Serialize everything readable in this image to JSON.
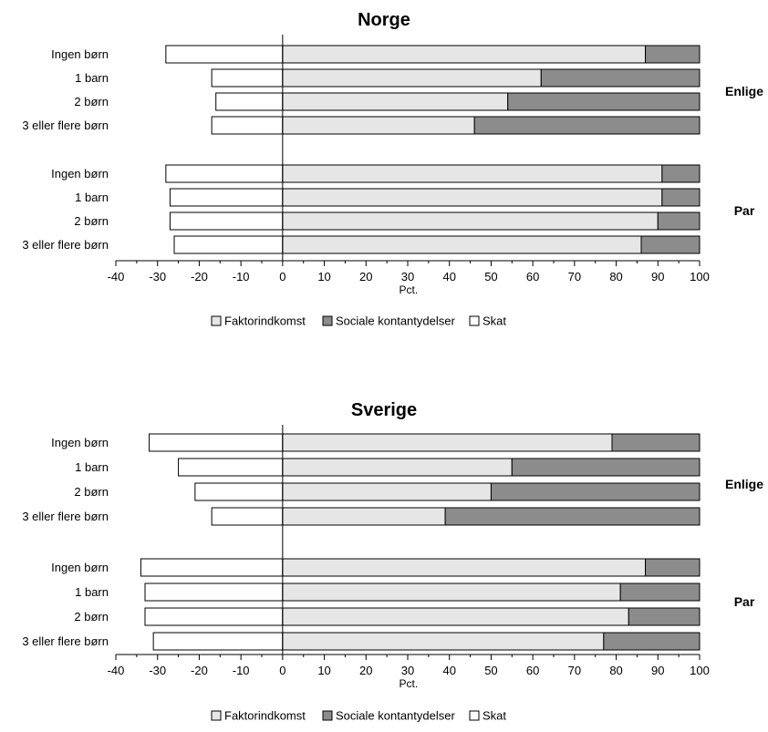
{
  "colors": {
    "faktor": "#e6e6e6",
    "sociale": "#8c8c8c",
    "skat": "#ffffff",
    "stroke": "#000000"
  },
  "chart_data": [
    {
      "type": "bar",
      "orientation": "horizontal",
      "stacked": true,
      "title": "Norge",
      "xlabel": "Pct.",
      "xlim": [
        -40,
        100
      ],
      "xticks": [
        -40,
        -30,
        -20,
        -10,
        0,
        10,
        20,
        30,
        40,
        50,
        60,
        70,
        80,
        90,
        100
      ],
      "legend_position": "bottom",
      "series_names": [
        "Faktorindkomst",
        "Sociale kontantydelser",
        "Skat"
      ],
      "groups": [
        {
          "label": "Enlige",
          "categories": [
            "Ingen børn",
            "1 barn",
            "2 børn",
            "3 eller flere børn"
          ],
          "faktorindkomst": [
            87,
            62,
            54,
            46
          ],
          "sociale_kontantydelser": [
            13,
            38,
            46,
            54
          ],
          "skat": [
            -28,
            -17,
            -16,
            -17
          ]
        },
        {
          "label": "Par",
          "categories": [
            "Ingen børn",
            "1 barn",
            "2 børn",
            "3 eller flere børn"
          ],
          "faktorindkomst": [
            91,
            91,
            90,
            86
          ],
          "sociale_kontantydelser": [
            9,
            9,
            10,
            14
          ],
          "skat": [
            -28,
            -27,
            -27,
            -26
          ]
        }
      ]
    },
    {
      "type": "bar",
      "orientation": "horizontal",
      "stacked": true,
      "title": "Sverige",
      "xlabel": "Pct.",
      "xlim": [
        -40,
        100
      ],
      "xticks": [
        -40,
        -30,
        -20,
        -10,
        0,
        10,
        20,
        30,
        40,
        50,
        60,
        70,
        80,
        90,
        100
      ],
      "legend_position": "bottom",
      "series_names": [
        "Faktorindkomst",
        "Sociale kontantydelser",
        "Skat"
      ],
      "groups": [
        {
          "label": "Enlige",
          "categories": [
            "Ingen børn",
            "1 barn",
            "2 børn",
            "3 eller flere børn"
          ],
          "faktorindkomst": [
            79,
            55,
            50,
            39
          ],
          "sociale_kontantydelser": [
            21,
            45,
            50,
            61
          ],
          "skat": [
            -32,
            -25,
            -21,
            -17
          ]
        },
        {
          "label": "Par",
          "categories": [
            "Ingen børn",
            "1 barn",
            "2 børn",
            "3 eller flere børn"
          ],
          "faktorindkomst": [
            87,
            81,
            83,
            77
          ],
          "sociale_kontantydelser": [
            13,
            19,
            17,
            23
          ],
          "skat": [
            -34,
            -33,
            -33,
            -31
          ]
        }
      ]
    }
  ]
}
